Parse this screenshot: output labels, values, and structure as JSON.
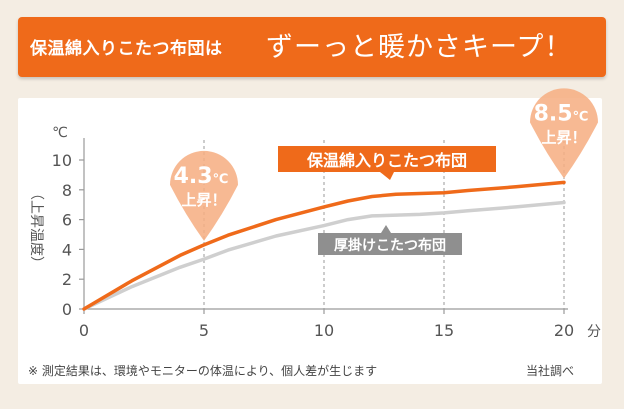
{
  "banner": {
    "small_text": "保温綿入りこたつ布団は",
    "big_text": "ずーっと暖かさキープ！",
    "color": "#ef6a1a"
  },
  "chart_data": {
    "type": "line",
    "title": "",
    "xlabel": "分",
    "ylabel": "（上昇温度）",
    "yunit": "℃",
    "xlim": [
      0,
      20
    ],
    "ylim": [
      0,
      10
    ],
    "xticks": [
      0,
      5,
      10,
      15,
      20
    ],
    "yticks": [
      0,
      2,
      4,
      6,
      8,
      10
    ],
    "grid": "vertical dashed at x=5, 10, 15, 20",
    "series": [
      {
        "name": "保温綿入りこたつ布団",
        "color": "#ef6a1a",
        "x": [
          0,
          2,
          4,
          5,
          6,
          8,
          10,
          11,
          12,
          13,
          14,
          15,
          16,
          18,
          20
        ],
        "y": [
          0,
          1.9,
          3.6,
          4.3,
          4.95,
          6.0,
          6.85,
          7.25,
          7.55,
          7.7,
          7.75,
          7.8,
          7.95,
          8.2,
          8.5
        ]
      },
      {
        "name": "厚掛けこたつ布団",
        "color": "#cfcfcf",
        "x": [
          0,
          2,
          4,
          5,
          6,
          8,
          10,
          11,
          12,
          14,
          15,
          16,
          18,
          20
        ],
        "y": [
          0,
          1.5,
          2.8,
          3.35,
          3.95,
          4.9,
          5.6,
          6.0,
          6.25,
          6.35,
          6.45,
          6.6,
          6.85,
          7.15
        ]
      }
    ],
    "annotations": [
      {
        "x": 5,
        "y": 4.3,
        "value": "4.3",
        "unit": "℃",
        "label": "上昇！"
      },
      {
        "x": 20,
        "y": 8.5,
        "value": "8.5",
        "unit": "℃",
        "label": "上昇！"
      }
    ]
  },
  "footer": {
    "note": "※ 測定結果は、環境やモニターの体温により、個人差が生じます",
    "source": "当社調べ"
  }
}
